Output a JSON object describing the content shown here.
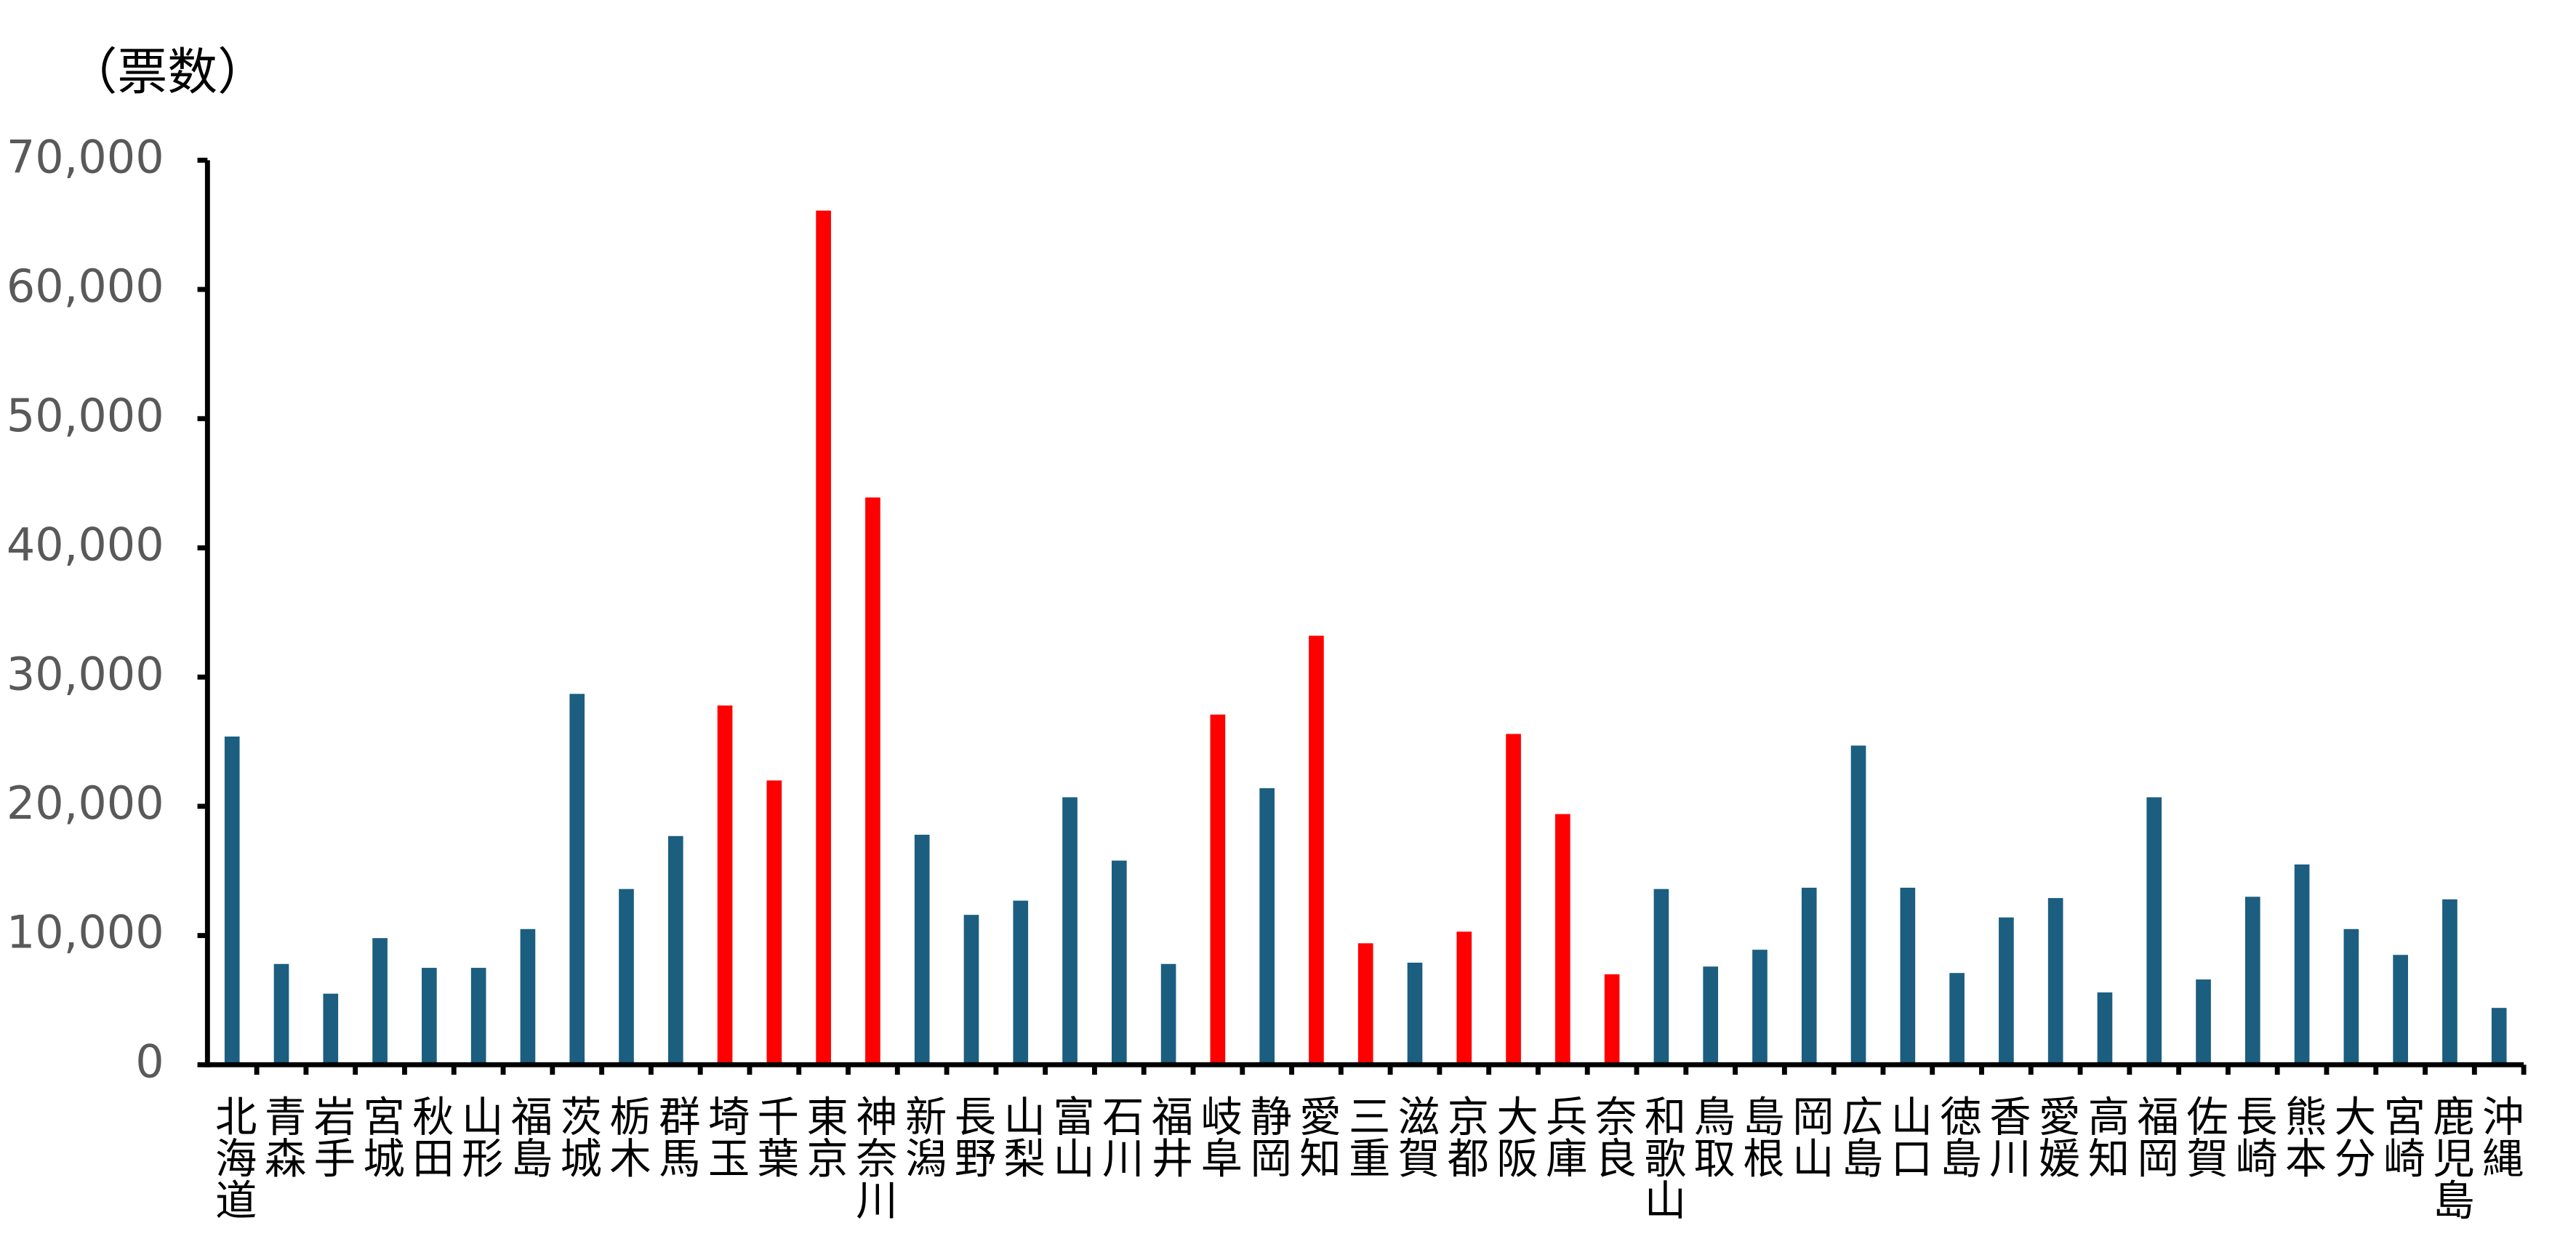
{
  "chart_data": {
    "type": "bar",
    "y_label": "（票数）",
    "categories": [
      "北海道",
      "青森",
      "岩手",
      "宮城",
      "秋田",
      "山形",
      "福島",
      "茨城",
      "栃木",
      "群馬",
      "埼玉",
      "千葉",
      "東京",
      "神奈川",
      "新潟",
      "長野",
      "山梨",
      "富山",
      "石川",
      "福井",
      "岐阜",
      "静岡",
      "愛知",
      "三重",
      "滋賀",
      "京都",
      "大阪",
      "兵庫",
      "奈良",
      "和歌山",
      "鳥取",
      "島根",
      "岡山",
      "広島",
      "山口",
      "徳島",
      "香川",
      "愛媛",
      "高知",
      "福岡",
      "佐賀",
      "長崎",
      "熊本",
      "大分",
      "宮崎",
      "鹿児島",
      "沖縄"
    ],
    "values": [
      25400,
      7800,
      5500,
      9800,
      7500,
      7500,
      10500,
      28700,
      13600,
      17700,
      27800,
      22000,
      66100,
      43900,
      17800,
      11600,
      12700,
      20700,
      15800,
      7800,
      27100,
      21400,
      33200,
      9400,
      7900,
      10300,
      25600,
      19400,
      7000,
      13600,
      7600,
      8900,
      13700,
      24700,
      13700,
      7100,
      11400,
      12900,
      5600,
      20700,
      6600,
      13000,
      15500,
      10500,
      8500,
      12800,
      4400
    ],
    "colors": [
      "#1b5e80",
      "#1b5e80",
      "#1b5e80",
      "#1b5e80",
      "#1b5e80",
      "#1b5e80",
      "#1b5e80",
      "#1b5e80",
      "#1b5e80",
      "#1b5e80",
      "#ff0000",
      "#ff0000",
      "#ff0000",
      "#ff0000",
      "#1b5e80",
      "#1b5e80",
      "#1b5e80",
      "#1b5e80",
      "#1b5e80",
      "#1b5e80",
      "#ff0000",
      "#1b5e80",
      "#ff0000",
      "#ff0000",
      "#1b5e80",
      "#ff0000",
      "#ff0000",
      "#ff0000",
      "#ff0000",
      "#1b5e80",
      "#1b5e80",
      "#1b5e80",
      "#1b5e80",
      "#1b5e80",
      "#1b5e80",
      "#1b5e80",
      "#1b5e80",
      "#1b5e80",
      "#1b5e80",
      "#1b5e80",
      "#1b5e80",
      "#1b5e80",
      "#1b5e80",
      "#1b5e80",
      "#1b5e80",
      "#1b5e80",
      "#1b5e80"
    ],
    "ylim": [
      0,
      70000
    ],
    "yticks": [
      0,
      {
        "value": 10000,
        "label": "10,000"
      },
      {
        "value": 20000,
        "label": "20,000"
      },
      {
        "value": 30000,
        "label": "30,000"
      },
      {
        "value": 40000,
        "label": "40,000"
      },
      {
        "value": 50000,
        "label": "50,000"
      },
      {
        "value": 60000,
        "label": "60,000"
      },
      {
        "value": 70000,
        "label": "70,000"
      }
    ],
    "grid": false
  }
}
